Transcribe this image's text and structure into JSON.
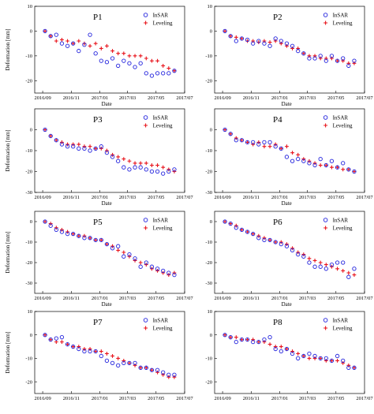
{
  "figure": {
    "x_tick_labels": [
      "2016/09",
      "2016/11",
      "2017/01",
      "2017/03",
      "2017/05",
      "2017/07"
    ],
    "ylabel": "Deformation [mm]",
    "xlabel": "Date"
  },
  "legend": {
    "insar": "InSAR",
    "leveling": "Leveling"
  },
  "colors": {
    "insar": "#2222dd",
    "leveling": "#e8141c"
  },
  "chart_data": [
    {
      "type": "scatter",
      "title": "P1",
      "ylim": [
        -25,
        10
      ],
      "yticks": [
        10,
        0,
        -10,
        -20
      ],
      "xlim": [
        "2016-08-15",
        "2017-07-01"
      ],
      "x": [
        "2016-09-06",
        "2016-09-18",
        "2016-09-30",
        "2016-10-12",
        "2016-10-24",
        "2016-11-05",
        "2016-11-17",
        "2016-11-29",
        "2016-12-11",
        "2016-12-23",
        "2017-01-04",
        "2017-01-16",
        "2017-01-28",
        "2017-02-09",
        "2017-02-21",
        "2017-03-05",
        "2017-03-17",
        "2017-03-29",
        "2017-04-10",
        "2017-04-22",
        "2017-05-04",
        "2017-05-16",
        "2017-05-28",
        "2017-06-09"
      ],
      "series": [
        {
          "name": "InSAR",
          "values": [
            0,
            -2,
            -1.5,
            -5,
            -6,
            -5,
            -8,
            -5.5,
            -1.5,
            -9,
            -12,
            -12.5,
            -11,
            -14,
            -12,
            -13,
            -14.5,
            -13,
            -17,
            -18,
            -17,
            -17,
            -17,
            -16
          ]
        },
        {
          "name": "Leveling",
          "values": [
            0,
            -2,
            -4,
            -3.5,
            -4,
            -5,
            -4,
            -5,
            -6,
            -5,
            -7,
            -6,
            -8,
            -9,
            -9,
            -10,
            -10,
            -10,
            -11,
            -12,
            -12,
            -14,
            -15,
            -16
          ]
        }
      ]
    },
    {
      "type": "scatter",
      "title": "P2",
      "ylim": [
        -25,
        10
      ],
      "yticks": [
        10,
        0,
        -10,
        -20
      ],
      "xlim": [
        "2016-08-15",
        "2017-07-01"
      ],
      "x": [
        "2016-09-06",
        "2016-09-18",
        "2016-09-30",
        "2016-10-12",
        "2016-10-24",
        "2016-11-05",
        "2016-11-17",
        "2016-11-29",
        "2016-12-11",
        "2016-12-23",
        "2017-01-04",
        "2017-01-16",
        "2017-01-28",
        "2017-02-09",
        "2017-02-21",
        "2017-03-05",
        "2017-03-17",
        "2017-03-29",
        "2017-04-10",
        "2017-04-22",
        "2017-05-04",
        "2017-05-16",
        "2017-05-28",
        "2017-06-09"
      ],
      "series": [
        {
          "name": "InSAR",
          "values": [
            0,
            -2,
            -4,
            -3,
            -3.5,
            -5,
            -4,
            -5,
            -6,
            -3,
            -4,
            -5,
            -6,
            -8,
            -9,
            -11,
            -11,
            -10,
            -12,
            -10,
            -12,
            -11,
            -14,
            -12
          ]
        },
        {
          "name": "Leveling",
          "values": [
            0,
            -2,
            -2.5,
            -3,
            -4,
            -4,
            -4.5,
            -4,
            -4.5,
            -4,
            -5,
            -6,
            -7,
            -7,
            -9,
            -10,
            -10,
            -11,
            -11,
            -11,
            -12,
            -12,
            -13,
            -13
          ]
        }
      ]
    },
    {
      "type": "scatter",
      "title": "P3",
      "ylim": [
        -30,
        10
      ],
      "yticks": [
        0,
        -10,
        -20,
        -30
      ],
      "xlim": [
        "2016-08-15",
        "2017-07-01"
      ],
      "x": [
        "2016-09-06",
        "2016-09-18",
        "2016-09-30",
        "2016-10-12",
        "2016-10-24",
        "2016-11-05",
        "2016-11-17",
        "2016-11-29",
        "2016-12-11",
        "2016-12-23",
        "2017-01-04",
        "2017-01-16",
        "2017-01-28",
        "2017-02-09",
        "2017-02-21",
        "2017-03-05",
        "2017-03-17",
        "2017-03-29",
        "2017-04-10",
        "2017-04-22",
        "2017-05-04",
        "2017-05-16",
        "2017-05-28",
        "2017-06-09"
      ],
      "series": [
        {
          "name": "InSAR",
          "values": [
            0,
            -3,
            -5,
            -7,
            -8,
            -8,
            -9,
            -9,
            -10,
            -9,
            -8,
            -11,
            -13,
            -15,
            -18,
            -19,
            -18,
            -18,
            -19,
            -20,
            -20,
            -21,
            -20,
            -19
          ]
        },
        {
          "name": "Leveling",
          "values": [
            0,
            -3,
            -5,
            -6,
            -7,
            -7,
            -7,
            -8,
            -8,
            -9,
            -9,
            -10,
            -12,
            -13,
            -14,
            -15,
            -16,
            -16,
            -16,
            -17,
            -17,
            -18,
            -19,
            -20
          ]
        }
      ]
    },
    {
      "type": "scatter",
      "title": "P4",
      "ylim": [
        -30,
        10
      ],
      "yticks": [
        0,
        -10,
        -20,
        -30
      ],
      "xlim": [
        "2016-08-15",
        "2017-07-01"
      ],
      "x": [
        "2016-09-06",
        "2016-09-18",
        "2016-09-30",
        "2016-10-12",
        "2016-10-24",
        "2016-11-05",
        "2016-11-17",
        "2016-11-29",
        "2016-12-11",
        "2016-12-23",
        "2017-01-04",
        "2017-01-16",
        "2017-01-28",
        "2017-02-09",
        "2017-02-21",
        "2017-03-05",
        "2017-03-17",
        "2017-03-29",
        "2017-04-10",
        "2017-04-22",
        "2017-05-04",
        "2017-05-16",
        "2017-05-28",
        "2017-06-09"
      ],
      "series": [
        {
          "name": "InSAR",
          "values": [
            0,
            -2,
            -5,
            -5,
            -6,
            -6,
            -7,
            -6,
            -6,
            -8,
            -9,
            -13,
            -15,
            -14,
            -15,
            -16,
            -17,
            -14,
            -17,
            -15,
            -18,
            -16,
            -19,
            -20
          ]
        },
        {
          "name": "Leveling",
          "values": [
            0,
            -2,
            -4,
            -5,
            -6,
            -7,
            -6,
            -8,
            -8,
            -7,
            -9,
            -8,
            -11,
            -12,
            -14,
            -15,
            -16,
            -17,
            -17,
            -18,
            -18,
            -19,
            -19,
            -20
          ]
        }
      ]
    },
    {
      "type": "scatter",
      "title": "P5",
      "ylim": [
        -35,
        5
      ],
      "yticks": [
        0,
        -10,
        -20,
        -30
      ],
      "xlim": [
        "2016-08-15",
        "2017-07-01"
      ],
      "x": [
        "2016-09-06",
        "2016-09-18",
        "2016-09-30",
        "2016-10-12",
        "2016-10-24",
        "2016-11-05",
        "2016-11-17",
        "2016-11-29",
        "2016-12-11",
        "2016-12-23",
        "2017-01-04",
        "2017-01-16",
        "2017-01-28",
        "2017-02-09",
        "2017-02-21",
        "2017-03-05",
        "2017-03-17",
        "2017-03-29",
        "2017-04-10",
        "2017-04-22",
        "2017-05-04",
        "2017-05-16",
        "2017-05-28",
        "2017-06-09"
      ],
      "series": [
        {
          "name": "InSAR",
          "values": [
            0,
            -2,
            -4,
            -5,
            -6,
            -6,
            -7,
            -8,
            -8,
            -9,
            -9,
            -11,
            -13,
            -12,
            -17,
            -16,
            -18,
            -22,
            -20,
            -22,
            -23,
            -24,
            -25,
            -26
          ]
        },
        {
          "name": "Leveling",
          "values": [
            0,
            -1,
            -3,
            -4,
            -5,
            -6,
            -7,
            -7,
            -8,
            -9,
            -9,
            -11,
            -12,
            -14,
            -15,
            -17,
            -19,
            -20,
            -21,
            -23,
            -24,
            -25,
            -26,
            -25
          ]
        }
      ]
    },
    {
      "type": "scatter",
      "title": "P6",
      "ylim": [
        -35,
        5
      ],
      "yticks": [
        0,
        -10,
        -20,
        -30
      ],
      "xlim": [
        "2016-08-15",
        "2017-07-01"
      ],
      "x": [
        "2016-09-06",
        "2016-09-18",
        "2016-09-30",
        "2016-10-12",
        "2016-10-24",
        "2016-11-05",
        "2016-11-17",
        "2016-11-29",
        "2016-12-11",
        "2016-12-23",
        "2017-01-04",
        "2017-01-16",
        "2017-01-28",
        "2017-02-09",
        "2017-02-21",
        "2017-03-05",
        "2017-03-17",
        "2017-03-29",
        "2017-04-10",
        "2017-04-22",
        "2017-05-04",
        "2017-05-16",
        "2017-05-28",
        "2017-06-09"
      ],
      "series": [
        {
          "name": "InSAR",
          "values": [
            0,
            -1,
            -3,
            -4,
            -5,
            -6,
            -8,
            -9,
            -9,
            -10,
            -11,
            -12,
            -14,
            -16,
            -17,
            -20,
            -22,
            -22,
            -23,
            -21,
            -20,
            -20,
            -27,
            -23
          ]
        },
        {
          "name": "Leveling",
          "values": [
            0,
            -1,
            -2,
            -4,
            -5,
            -6,
            -7,
            -8,
            -9,
            -10,
            -10,
            -11,
            -13,
            -15,
            -16,
            -18,
            -19,
            -20,
            -21,
            -22,
            -23,
            -24,
            -25,
            -26
          ]
        }
      ]
    },
    {
      "type": "scatter",
      "title": "P7",
      "ylim": [
        -25,
        10
      ],
      "yticks": [
        10,
        0,
        -10,
        -20
      ],
      "xlim": [
        "2016-08-15",
        "2017-07-01"
      ],
      "x": [
        "2016-09-06",
        "2016-09-18",
        "2016-09-30",
        "2016-10-12",
        "2016-10-24",
        "2016-11-05",
        "2016-11-17",
        "2016-11-29",
        "2016-12-11",
        "2016-12-23",
        "2017-01-04",
        "2017-01-16",
        "2017-01-28",
        "2017-02-09",
        "2017-02-21",
        "2017-03-05",
        "2017-03-17",
        "2017-03-29",
        "2017-04-10",
        "2017-04-22",
        "2017-05-04",
        "2017-05-16",
        "2017-05-28",
        "2017-06-09"
      ],
      "series": [
        {
          "name": "InSAR",
          "values": [
            0,
            -2,
            -1.5,
            -1,
            -4,
            -5,
            -6,
            -7,
            -7,
            -7,
            -9,
            -11,
            -12,
            -13,
            -12,
            -12,
            -12,
            -14,
            -14,
            -15,
            -15,
            -16,
            -17,
            -17
          ]
        },
        {
          "name": "Leveling",
          "values": [
            0,
            -2,
            -3,
            -3,
            -4,
            -5,
            -5,
            -6,
            -6,
            -7,
            -7,
            -8,
            -9,
            -10,
            -11,
            -12,
            -13,
            -14,
            -14,
            -15,
            -16,
            -17,
            -18,
            -18
          ]
        }
      ]
    },
    {
      "type": "scatter",
      "title": "P8",
      "ylim": [
        -25,
        10
      ],
      "yticks": [
        10,
        0,
        -10,
        -20
      ],
      "xlim": [
        "2016-08-15",
        "2017-07-01"
      ],
      "x": [
        "2016-09-06",
        "2016-09-18",
        "2016-09-30",
        "2016-10-12",
        "2016-10-24",
        "2016-11-05",
        "2016-11-17",
        "2016-11-29",
        "2016-12-11",
        "2016-12-23",
        "2017-01-04",
        "2017-01-16",
        "2017-01-28",
        "2017-02-09",
        "2017-02-21",
        "2017-03-05",
        "2017-03-17",
        "2017-03-29",
        "2017-04-10",
        "2017-04-22",
        "2017-05-04",
        "2017-05-16",
        "2017-05-28",
        "2017-06-09"
      ],
      "series": [
        {
          "name": "InSAR",
          "values": [
            0,
            -1,
            -3,
            -2,
            -2,
            -3,
            -3,
            -2,
            -1,
            -6,
            -7,
            -6,
            -8,
            -10,
            -9,
            -8,
            -9,
            -10,
            -10,
            -11,
            -9,
            -11,
            -14,
            -14
          ]
        },
        {
          "name": "Leveling",
          "values": [
            0,
            -1,
            -1,
            -2,
            -2,
            -2,
            -3,
            -3,
            -4,
            -5,
            -5,
            -6,
            -7,
            -8,
            -9,
            -10,
            -10,
            -10,
            -11,
            -11,
            -11,
            -12,
            -13,
            -14
          ]
        }
      ]
    }
  ]
}
